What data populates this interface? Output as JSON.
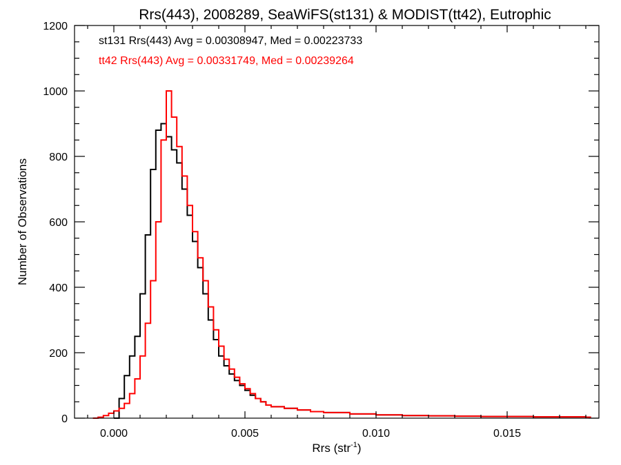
{
  "chart_data": {
    "type": "histogram",
    "title": "Rrs(443), 2008289, SeaWiFS(st131) & MODIST(tt42), Eutrophic",
    "xlabel": "Rrs (str",
    "xlabel_sup": "-1",
    "xlabel_end": ")",
    "ylabel": "Number of Observations",
    "xlim": [
      -0.0015,
      0.0185
    ],
    "ylim": [
      0,
      1200
    ],
    "x_ticks": [
      0.0,
      0.005,
      0.01,
      0.015
    ],
    "x_tick_labels": [
      "0.000",
      "0.005",
      "0.010",
      "0.015"
    ],
    "y_ticks": [
      0,
      200,
      400,
      600,
      800,
      1000,
      1200
    ],
    "y_tick_labels": [
      "0",
      "200",
      "400",
      "600",
      "800",
      "1000",
      "1200"
    ],
    "grid": false,
    "series": [
      {
        "name": "st131",
        "legend": "st131 Rrs(443) Avg = 0.00308947, Med = 0.00223733",
        "color": "#000000",
        "points": [
          [
            0.0,
            0
          ],
          [
            0.0002,
            60
          ],
          [
            0.0004,
            130
          ],
          [
            0.0006,
            190
          ],
          [
            0.0008,
            250
          ],
          [
            0.001,
            380
          ],
          [
            0.0012,
            560
          ],
          [
            0.0014,
            760
          ],
          [
            0.0016,
            880
          ],
          [
            0.0018,
            900
          ],
          [
            0.002,
            860
          ],
          [
            0.0022,
            820
          ],
          [
            0.0024,
            780
          ],
          [
            0.0026,
            700
          ],
          [
            0.0028,
            620
          ],
          [
            0.003,
            540
          ],
          [
            0.0032,
            460
          ],
          [
            0.0034,
            380
          ],
          [
            0.0036,
            300
          ],
          [
            0.0038,
            240
          ],
          [
            0.004,
            190
          ],
          [
            0.0042,
            160
          ],
          [
            0.0044,
            135
          ],
          [
            0.0046,
            115
          ],
          [
            0.0048,
            100
          ],
          [
            0.005,
            85
          ],
          [
            0.0052,
            70
          ],
          [
            0.0054,
            60
          ],
          [
            0.0056,
            50
          ],
          [
            0.0058,
            40
          ],
          [
            0.006,
            35
          ],
          [
            0.0065,
            30
          ],
          [
            0.007,
            25
          ],
          [
            0.0075,
            20
          ],
          [
            0.008,
            17
          ],
          [
            0.009,
            13
          ],
          [
            0.01,
            10
          ],
          [
            0.011,
            8
          ],
          [
            0.012,
            7
          ],
          [
            0.013,
            6
          ],
          [
            0.014,
            5
          ],
          [
            0.015,
            5
          ],
          [
            0.016,
            4
          ],
          [
            0.017,
            4
          ],
          [
            0.018,
            3
          ]
        ]
      },
      {
        "name": "tt42",
        "legend": "tt42 Rrs(443) Avg = 0.00331749, Med = 0.00239264",
        "color": "#ff0000",
        "points": [
          [
            -0.0008,
            0
          ],
          [
            -0.0006,
            3
          ],
          [
            -0.0004,
            8
          ],
          [
            -0.0002,
            15
          ],
          [
            0.0,
            22
          ],
          [
            0.0002,
            30
          ],
          [
            0.0004,
            45
          ],
          [
            0.0006,
            75
          ],
          [
            0.0008,
            120
          ],
          [
            0.001,
            190
          ],
          [
            0.0012,
            290
          ],
          [
            0.0014,
            420
          ],
          [
            0.0016,
            600
          ],
          [
            0.0018,
            850
          ],
          [
            0.002,
            1000
          ],
          [
            0.0022,
            920
          ],
          [
            0.0024,
            830
          ],
          [
            0.0026,
            740
          ],
          [
            0.0028,
            650
          ],
          [
            0.003,
            570
          ],
          [
            0.0032,
            490
          ],
          [
            0.0034,
            420
          ],
          [
            0.0036,
            340
          ],
          [
            0.0038,
            270
          ],
          [
            0.004,
            220
          ],
          [
            0.0042,
            180
          ],
          [
            0.0044,
            150
          ],
          [
            0.0046,
            125
          ],
          [
            0.0048,
            105
          ],
          [
            0.005,
            90
          ],
          [
            0.0052,
            75
          ],
          [
            0.0054,
            60
          ],
          [
            0.0056,
            50
          ],
          [
            0.0058,
            40
          ],
          [
            0.006,
            35
          ],
          [
            0.0065,
            30
          ],
          [
            0.007,
            25
          ],
          [
            0.0075,
            20
          ],
          [
            0.008,
            17
          ],
          [
            0.009,
            13
          ],
          [
            0.01,
            10
          ],
          [
            0.011,
            8
          ],
          [
            0.012,
            7
          ],
          [
            0.013,
            6
          ],
          [
            0.014,
            5
          ],
          [
            0.015,
            5
          ],
          [
            0.016,
            4
          ],
          [
            0.017,
            4
          ],
          [
            0.018,
            3
          ]
        ]
      }
    ]
  }
}
